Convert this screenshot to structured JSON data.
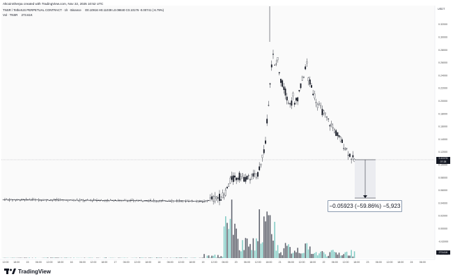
{
  "header": {
    "attribution": "AltcoinSherpa created with TradingView.com, Nov 22, 2025 10:52 UTC",
    "symbol": "TNSR / TetherUS PERPETUAL CONTRACT · 1h · Binance",
    "ohlc": "O0.10916 H0.11039 L0.09840 C0.10176 -0.00741 (-6.79%)",
    "vol_label": "Vol · TNSR",
    "vol_value": "273.61K"
  },
  "price_axis": {
    "currency": "USDT",
    "ticks": [
      "0.32000",
      "0.30000",
      "0.28000",
      "0.26000",
      "0.24000",
      "0.22000",
      "0.20000",
      "0.18000",
      "0.16000",
      "0.14000",
      "0.12000",
      "0.10000",
      "0.08000",
      "0.06000",
      "0.04000",
      "0.02000",
      "0.00000",
      "-0.02000",
      "-0.04000",
      "-0.06000"
    ],
    "last_price": "0.10176",
    "countdown": "07:28",
    "volume_tag": "273.61K"
  },
  "time_axis": {
    "ticks": [
      "12:00",
      "18:00",
      "15",
      "06:00",
      "12:00",
      "18:00",
      "16",
      "06:00",
      "12:00",
      "18:00",
      "17",
      "06:00",
      "12:00",
      "18:00",
      "18",
      "06:00",
      "12:00",
      "18:00",
      "19",
      "12:00",
      "06:00",
      "20",
      "06:00",
      "12:00",
      "18:00",
      "21",
      "06:00",
      "12:00",
      "18:00",
      "22",
      "06:00",
      "12:00",
      "18:00",
      "23",
      "06:00",
      "12:00",
      "18:00",
      "24",
      "06:00"
    ]
  },
  "measure": {
    "label": "−0.05923 (−59.86%) −5,923"
  },
  "footer": {
    "brand": "TradingView"
  },
  "colors": {
    "up": "#26a69a",
    "down": "#131722",
    "vol_up": "#80cbc4",
    "vol_down": "#5d606b",
    "measure_fill": "#e9eaee"
  }
}
